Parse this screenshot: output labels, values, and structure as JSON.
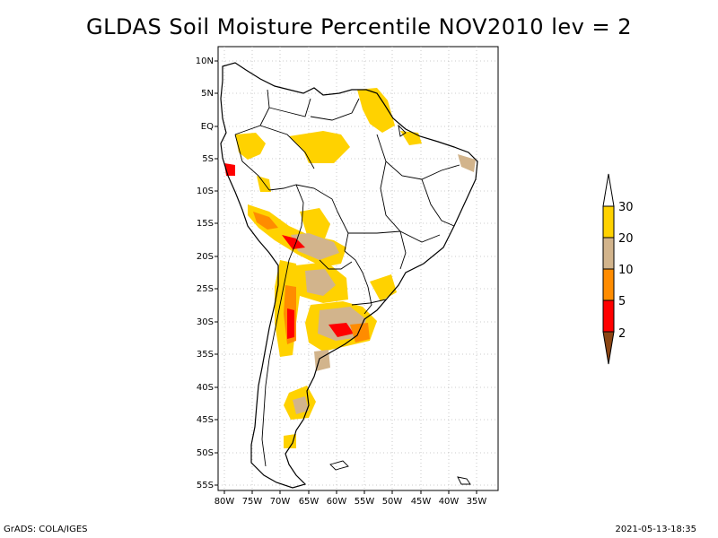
{
  "title": "GLDAS Soil Moisture Percentile NOV2010 lev = 2",
  "axes": {
    "lat_labels": [
      "10N",
      "5N",
      "EQ",
      "5S",
      "10S",
      "15S",
      "20S",
      "25S",
      "30S",
      "35S",
      "40S",
      "45S",
      "50S",
      "55S"
    ],
    "lon_labels": [
      "80W",
      "75W",
      "70W",
      "65W",
      "60W",
      "55W",
      "50W",
      "45W",
      "40W",
      "35W"
    ]
  },
  "colorbar": {
    "labels": [
      "30",
      "20",
      "10",
      "5",
      "2"
    ],
    "colors": [
      "#ffd200",
      "#d2b48c",
      "#ff8c00",
      "#ff0000",
      "#8b4513"
    ]
  },
  "footer": {
    "credit": "GrADS: COLA/IGES",
    "timestamp": "2021-05-13-18:35"
  }
}
